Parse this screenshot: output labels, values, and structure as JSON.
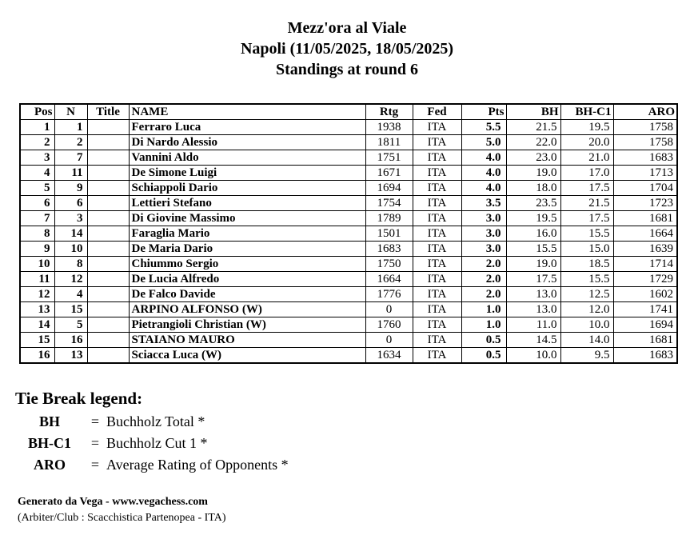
{
  "header": {
    "title": "Mezz'ora al Viale",
    "subtitle": "Napoli (11/05/2025, 18/05/2025)",
    "round_line": "Standings at round 6"
  },
  "standings": {
    "columns": [
      "Pos",
      "N",
      "Title",
      "NAME",
      "Rtg",
      "Fed",
      "Pts",
      "BH",
      "BH-C1",
      "ARO"
    ],
    "rows": [
      [
        "1",
        "1",
        "",
        "Ferraro Luca",
        "1938",
        "ITA",
        "5.5",
        "21.5",
        "19.5",
        "1758"
      ],
      [
        "2",
        "2",
        "",
        "Di Nardo Alessio",
        "1811",
        "ITA",
        "5.0",
        "22.0",
        "20.0",
        "1758"
      ],
      [
        "3",
        "7",
        "",
        "Vannini Aldo",
        "1751",
        "ITA",
        "4.0",
        "23.0",
        "21.0",
        "1683"
      ],
      [
        "4",
        "11",
        "",
        "De Simone Luigi",
        "1671",
        "ITA",
        "4.0",
        "19.0",
        "17.0",
        "1713"
      ],
      [
        "5",
        "9",
        "",
        "Schiappoli Dario",
        "1694",
        "ITA",
        "4.0",
        "18.0",
        "17.5",
        "1704"
      ],
      [
        "6",
        "6",
        "",
        "Lettieri Stefano",
        "1754",
        "ITA",
        "3.5",
        "23.5",
        "21.5",
        "1723"
      ],
      [
        "7",
        "3",
        "",
        "Di Giovine Massimo",
        "1789",
        "ITA",
        "3.0",
        "19.5",
        "17.5",
        "1681"
      ],
      [
        "8",
        "14",
        "",
        "Faraglia Mario",
        "1501",
        "ITA",
        "3.0",
        "16.0",
        "15.5",
        "1664"
      ],
      [
        "9",
        "10",
        "",
        "De Maria Dario",
        "1683",
        "ITA",
        "3.0",
        "15.5",
        "15.0",
        "1639"
      ],
      [
        "10",
        "8",
        "",
        "Chiummo Sergio",
        "1750",
        "ITA",
        "2.0",
        "19.0",
        "18.5",
        "1714"
      ],
      [
        "11",
        "12",
        "",
        "De Lucia Alfredo",
        "1664",
        "ITA",
        "2.0",
        "17.5",
        "15.5",
        "1729"
      ],
      [
        "12",
        "4",
        "",
        "De Falco Davide",
        "1776",
        "ITA",
        "2.0",
        "13.0",
        "12.5",
        "1602"
      ],
      [
        "13",
        "15",
        "",
        "ARPINO ALFONSO (W)",
        "0",
        "ITA",
        "1.0",
        "13.0",
        "12.0",
        "1741"
      ],
      [
        "14",
        "5",
        "",
        "Pietrangioli Christian (W)",
        "1760",
        "ITA",
        "1.0",
        "11.0",
        "10.0",
        "1694"
      ],
      [
        "15",
        "16",
        "",
        "STAIANO MAURO",
        "0",
        "ITA",
        "0.5",
        "14.5",
        "14.0",
        "1681"
      ],
      [
        "16",
        "13",
        "",
        "Sciacca Luca (W)",
        "1634",
        "ITA",
        "0.5",
        "10.0",
        "9.5",
        "1683"
      ]
    ]
  },
  "tiebreak": {
    "heading": "Tie Break legend:",
    "items": [
      {
        "term": "BH",
        "eq": "=",
        "description": "Buchholz Total *"
      },
      {
        "term": "BH-C1",
        "eq": "=",
        "description": "Buchholz Cut 1 *"
      },
      {
        "term": "ARO",
        "eq": "=",
        "description": "Average Rating of Opponents *"
      }
    ]
  },
  "footer": {
    "generator": "Generato da Vega - www.vegachess.com",
    "arbiter_club": "(Arbiter/Club : Scacchistica Partenopea - ITA)"
  },
  "colors": {
    "text": "#000000",
    "background": "#ffffff",
    "table_border": "#000000"
  }
}
